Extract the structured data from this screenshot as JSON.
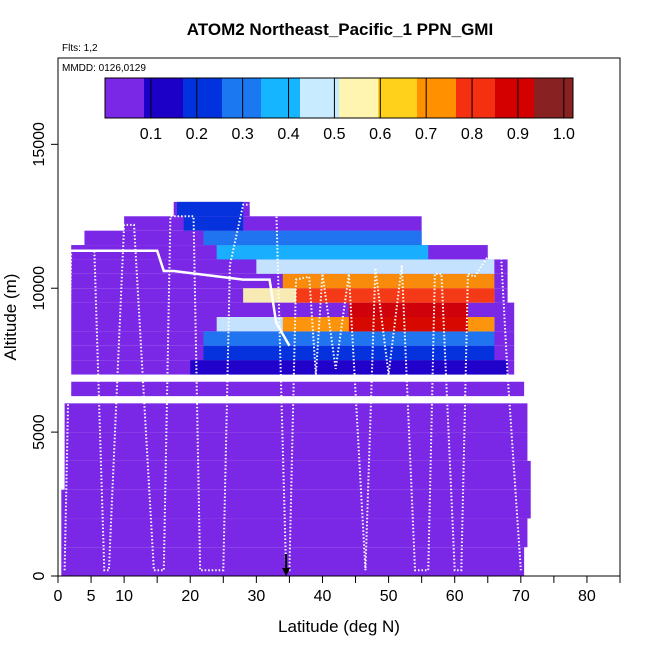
{
  "chart_data": {
    "type": "heatmap",
    "title": "ATOM2 Northeast_Pacific_1 PPN_GMI",
    "annotations": [
      "Flts: 1,2",
      "MMDD: 0126,0129"
    ],
    "xlabel": "Latitude (deg N)",
    "ylabel": "Altitude (m)",
    "xlim": [
      0,
      85
    ],
    "ylim": [
      0,
      18000
    ],
    "x_ticks": [
      0,
      5,
      10,
      20,
      30,
      40,
      50,
      60,
      70,
      80
    ],
    "x_minor_ticks": [
      15,
      25,
      35,
      45,
      55,
      65,
      75,
      85
    ],
    "y_ticks": [
      0,
      5000,
      10000,
      15000
    ],
    "colorbar": {
      "min": 0.0,
      "max": 1.02,
      "ticks": [
        "0.1",
        "0.2",
        "0.3",
        "0.4",
        "0.5",
        "0.6",
        "0.7",
        "0.8",
        "0.9",
        "1.0"
      ],
      "colors": [
        "#7b28e6",
        "#1c00c8",
        "#0033dd",
        "#1b78f0",
        "#15b6ff",
        "#c8ebff",
        "#fff4b0",
        "#ffd11a",
        "#ff9000",
        "#f43010",
        "#d40000",
        "#882222"
      ]
    },
    "curtain_profile": {
      "description": "background PPN fraction by altitude band",
      "altitude_m": [
        500,
        1500,
        2500,
        3500,
        4500,
        5500,
        6500,
        7250,
        7750,
        8250,
        8750,
        9250,
        9750,
        10250,
        10750,
        11250,
        11750,
        12250,
        12750
      ],
      "lat_extent": [
        [
          0.5,
          70.5
        ],
        [
          0.5,
          71
        ],
        [
          0.5,
          71.5
        ],
        [
          1,
          71.5
        ],
        [
          1,
          71
        ],
        [
          1,
          71
        ],
        [
          2,
          70.5
        ],
        [
          2,
          69
        ],
        [
          2,
          69
        ],
        [
          2,
          69
        ],
        [
          2,
          69
        ],
        [
          2,
          69
        ],
        [
          2,
          68
        ],
        [
          2,
          68
        ],
        [
          2,
          68
        ],
        [
          2,
          65
        ],
        [
          4,
          55
        ],
        [
          10,
          55
        ],
        [
          17.5,
          29
        ]
      ]
    },
    "high_value_region": {
      "description": "PPN enhancement 8–10 km",
      "cells": [
        {
          "lat": [
            20,
            68
          ],
          "alt": [
            7000,
            7500
          ],
          "value": 0.15
        },
        {
          "lat": [
            22,
            66
          ],
          "alt": [
            7500,
            8000
          ],
          "value": 0.2
        },
        {
          "lat": [
            22,
            66
          ],
          "alt": [
            8000,
            8500
          ],
          "value": 0.3
        },
        {
          "lat": [
            24,
            66
          ],
          "alt": [
            8500,
            9000
          ],
          "value": 0.45
        },
        {
          "lat": [
            34,
            66
          ],
          "alt": [
            8500,
            9000
          ],
          "value": 0.7
        },
        {
          "lat": [
            44,
            62
          ],
          "alt": [
            8500,
            9500
          ],
          "value": 0.9
        },
        {
          "lat": [
            28,
            66
          ],
          "alt": [
            9500,
            10000
          ],
          "value": 0.55
        },
        {
          "lat": [
            36,
            66
          ],
          "alt": [
            9500,
            10000
          ],
          "value": 0.8
        },
        {
          "lat": [
            34,
            66
          ],
          "alt": [
            10000,
            10500
          ],
          "value": 0.75
        },
        {
          "lat": [
            30,
            66
          ],
          "alt": [
            10500,
            11000
          ],
          "value": 0.45
        },
        {
          "lat": [
            24,
            56
          ],
          "alt": [
            11000,
            11500
          ],
          "value": 0.35
        },
        {
          "lat": [
            22,
            55
          ],
          "alt": [
            11500,
            12000
          ],
          "value": 0.3
        },
        {
          "lat": [
            19,
            28
          ],
          "alt": [
            12000,
            12500
          ],
          "value": 0.25
        },
        {
          "lat": [
            18,
            28
          ],
          "alt": [
            12500,
            13000
          ],
          "value": 0.2
        }
      ]
    },
    "flight_track_1": {
      "style": "solid white",
      "lat": [
        2,
        3,
        15,
        16,
        17.5,
        28,
        32,
        33,
        35
      ],
      "alt_m": [
        11300,
        11300,
        11300,
        10600,
        10600,
        10300,
        10300,
        8800,
        8000
      ]
    },
    "flight_track_2": {
      "style": "dotted white",
      "lat": [
        1,
        2,
        5.5,
        7,
        7.7,
        10,
        11.5,
        14.5,
        16,
        17,
        20.5,
        21.5,
        25,
        26,
        28,
        33,
        34.5,
        35,
        36,
        38,
        39,
        40,
        42,
        44,
        46.5,
        48,
        50,
        52,
        54,
        56,
        57,
        58,
        60,
        61,
        62,
        63,
        65,
        67,
        68,
        70
      ],
      "alt_m": [
        200,
        11300,
        11300,
        200,
        200,
        12200,
        12200,
        200,
        200,
        12500,
        12500,
        200,
        200,
        10800,
        12900,
        12900,
        200,
        200,
        10300,
        10400,
        7000,
        10500,
        7200,
        10500,
        200,
        10700,
        7000,
        10800,
        200,
        200,
        10500,
        10500,
        200,
        200,
        10500,
        10400,
        11100,
        11200,
        7000,
        200
      ]
    },
    "marker": {
      "label": "arrow",
      "lat": 34.5,
      "alt_m": 0
    }
  }
}
